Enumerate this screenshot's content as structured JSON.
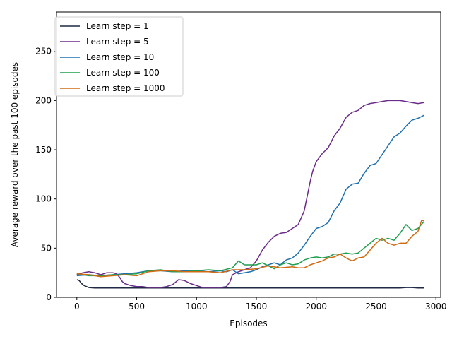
{
  "chart_data": {
    "type": "line",
    "title": "",
    "xlabel": "Episodes",
    "ylabel": "Average reward over the past 100 episodes",
    "xlim": [
      -170,
      3040
    ],
    "ylim": [
      0,
      290
    ],
    "xticks": [
      0,
      500,
      1000,
      1500,
      2000,
      2500,
      3000
    ],
    "yticks": [
      0,
      50,
      100,
      150,
      200,
      250
    ],
    "grid": false,
    "legend_position": "top-left",
    "series": [
      {
        "name": "Learn step = 1",
        "color": "#1f2a44",
        "points": [
          [
            0,
            18
          ],
          [
            20,
            17
          ],
          [
            40,
            14
          ],
          [
            60,
            12
          ],
          [
            80,
            11
          ],
          [
            100,
            10
          ],
          [
            150,
            9.5
          ],
          [
            300,
            9.5
          ],
          [
            600,
            9.5
          ],
          [
            900,
            9.5
          ],
          [
            1200,
            9.5
          ],
          [
            1500,
            9.5
          ],
          [
            1800,
            9.5
          ],
          [
            2100,
            9.5
          ],
          [
            2400,
            9.5
          ],
          [
            2700,
            9.5
          ],
          [
            2750,
            10
          ],
          [
            2800,
            10
          ],
          [
            2850,
            9.5
          ],
          [
            2900,
            9.5
          ]
        ]
      },
      {
        "name": "Learn step = 5",
        "color": "#6a2c8a",
        "points": [
          [
            0,
            23
          ],
          [
            50,
            25
          ],
          [
            100,
            26
          ],
          [
            150,
            25
          ],
          [
            200,
            23
          ],
          [
            250,
            25
          ],
          [
            300,
            25
          ],
          [
            330,
            24
          ],
          [
            360,
            20
          ],
          [
            380,
            16
          ],
          [
            400,
            14
          ],
          [
            450,
            12
          ],
          [
            500,
            11
          ],
          [
            550,
            11
          ],
          [
            600,
            10
          ],
          [
            650,
            10
          ],
          [
            700,
            10
          ],
          [
            750,
            11
          ],
          [
            800,
            13
          ],
          [
            850,
            18
          ],
          [
            900,
            17
          ],
          [
            950,
            14
          ],
          [
            1000,
            12
          ],
          [
            1050,
            10
          ],
          [
            1100,
            10
          ],
          [
            1150,
            10
          ],
          [
            1200,
            10
          ],
          [
            1250,
            11
          ],
          [
            1280,
            16
          ],
          [
            1300,
            23
          ],
          [
            1350,
            26
          ],
          [
            1400,
            28
          ],
          [
            1450,
            30
          ],
          [
            1500,
            37
          ],
          [
            1550,
            48
          ],
          [
            1600,
            56
          ],
          [
            1650,
            62
          ],
          [
            1700,
            65
          ],
          [
            1750,
            66
          ],
          [
            1800,
            70
          ],
          [
            1850,
            74
          ],
          [
            1900,
            88
          ],
          [
            1920,
            100
          ],
          [
            1950,
            118
          ],
          [
            1970,
            128
          ],
          [
            2000,
            138
          ],
          [
            2050,
            146
          ],
          [
            2100,
            152
          ],
          [
            2150,
            164
          ],
          [
            2200,
            172
          ],
          [
            2250,
            183
          ],
          [
            2300,
            188
          ],
          [
            2350,
            190
          ],
          [
            2400,
            195
          ],
          [
            2450,
            197
          ],
          [
            2500,
            198
          ],
          [
            2550,
            199
          ],
          [
            2600,
            200
          ],
          [
            2650,
            200
          ],
          [
            2700,
            200
          ],
          [
            2750,
            199
          ],
          [
            2800,
            198
          ],
          [
            2850,
            197
          ],
          [
            2900,
            198
          ]
        ]
      },
      {
        "name": "Learn step = 10",
        "color": "#1f6fae",
        "points": [
          [
            0,
            22
          ],
          [
            100,
            23
          ],
          [
            200,
            22
          ],
          [
            300,
            23
          ],
          [
            400,
            24
          ],
          [
            500,
            25
          ],
          [
            600,
            27
          ],
          [
            700,
            27
          ],
          [
            800,
            26
          ],
          [
            900,
            27
          ],
          [
            1000,
            27
          ],
          [
            1100,
            26
          ],
          [
            1200,
            27
          ],
          [
            1250,
            26
          ],
          [
            1300,
            28
          ],
          [
            1350,
            24
          ],
          [
            1400,
            25
          ],
          [
            1450,
            26
          ],
          [
            1500,
            28
          ],
          [
            1550,
            31
          ],
          [
            1600,
            33
          ],
          [
            1650,
            35
          ],
          [
            1700,
            33
          ],
          [
            1750,
            38
          ],
          [
            1800,
            40
          ],
          [
            1850,
            45
          ],
          [
            1900,
            53
          ],
          [
            1950,
            62
          ],
          [
            2000,
            70
          ],
          [
            2050,
            72
          ],
          [
            2100,
            76
          ],
          [
            2150,
            88
          ],
          [
            2200,
            96
          ],
          [
            2250,
            110
          ],
          [
            2300,
            115
          ],
          [
            2350,
            116
          ],
          [
            2400,
            126
          ],
          [
            2450,
            134
          ],
          [
            2500,
            136
          ],
          [
            2550,
            145
          ],
          [
            2600,
            154
          ],
          [
            2650,
            163
          ],
          [
            2700,
            167
          ],
          [
            2750,
            174
          ],
          [
            2800,
            180
          ],
          [
            2850,
            182
          ],
          [
            2900,
            185
          ]
        ]
      },
      {
        "name": "Learn step = 100",
        "color": "#1e9e4f",
        "points": [
          [
            0,
            24
          ],
          [
            100,
            22
          ],
          [
            200,
            22
          ],
          [
            300,
            23
          ],
          [
            400,
            23
          ],
          [
            500,
            24
          ],
          [
            600,
            27
          ],
          [
            700,
            28
          ],
          [
            800,
            26
          ],
          [
            900,
            26
          ],
          [
            1000,
            27
          ],
          [
            1100,
            28
          ],
          [
            1200,
            27
          ],
          [
            1300,
            30
          ],
          [
            1350,
            37
          ],
          [
            1400,
            33
          ],
          [
            1500,
            33
          ],
          [
            1550,
            35
          ],
          [
            1600,
            32
          ],
          [
            1650,
            29
          ],
          [
            1700,
            33
          ],
          [
            1750,
            35
          ],
          [
            1800,
            33
          ],
          [
            1850,
            34
          ],
          [
            1900,
            38
          ],
          [
            1950,
            40
          ],
          [
            2000,
            41
          ],
          [
            2050,
            40
          ],
          [
            2100,
            41
          ],
          [
            2150,
            44
          ],
          [
            2200,
            44
          ],
          [
            2250,
            45
          ],
          [
            2300,
            44
          ],
          [
            2350,
            45
          ],
          [
            2400,
            50
          ],
          [
            2450,
            55
          ],
          [
            2500,
            60
          ],
          [
            2550,
            58
          ],
          [
            2600,
            60
          ],
          [
            2650,
            58
          ],
          [
            2700,
            65
          ],
          [
            2750,
            74
          ],
          [
            2800,
            68
          ],
          [
            2850,
            70
          ],
          [
            2900,
            77
          ]
        ]
      },
      {
        "name": "Learn step = 1000",
        "color": "#cf6a13",
        "points": [
          [
            0,
            24
          ],
          [
            100,
            23
          ],
          [
            200,
            21
          ],
          [
            300,
            22
          ],
          [
            400,
            23
          ],
          [
            500,
            22
          ],
          [
            600,
            26
          ],
          [
            700,
            27
          ],
          [
            800,
            27
          ],
          [
            900,
            26
          ],
          [
            1000,
            26
          ],
          [
            1100,
            26
          ],
          [
            1200,
            25
          ],
          [
            1300,
            28
          ],
          [
            1400,
            28
          ],
          [
            1500,
            29
          ],
          [
            1600,
            32
          ],
          [
            1700,
            30
          ],
          [
            1800,
            31
          ],
          [
            1850,
            30
          ],
          [
            1900,
            30
          ],
          [
            1950,
            33
          ],
          [
            2000,
            35
          ],
          [
            2050,
            37
          ],
          [
            2100,
            40
          ],
          [
            2150,
            41
          ],
          [
            2200,
            44
          ],
          [
            2250,
            40
          ],
          [
            2300,
            37
          ],
          [
            2350,
            40
          ],
          [
            2400,
            41
          ],
          [
            2450,
            48
          ],
          [
            2500,
            55
          ],
          [
            2550,
            60
          ],
          [
            2600,
            55
          ],
          [
            2650,
            53
          ],
          [
            2700,
            55
          ],
          [
            2750,
            55
          ],
          [
            2800,
            62
          ],
          [
            2850,
            67
          ],
          [
            2880,
            78
          ],
          [
            2900,
            78
          ]
        ]
      }
    ]
  }
}
